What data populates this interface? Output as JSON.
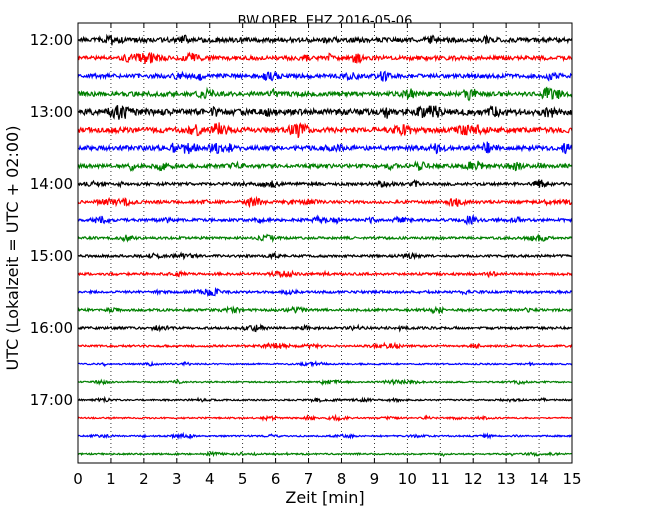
{
  "chart_data": {
    "type": "line",
    "title": "BW.OBER..EHZ 2016-05-06",
    "xlabel": "Zeit  [min]",
    "ylabel": "UTC (Lokalzeit = UTC + 02:00)",
    "xlim": [
      0,
      15
    ],
    "x_ticks": [
      "0",
      "1",
      "2",
      "3",
      "4",
      "5",
      "6",
      "7",
      "8",
      "9",
      "10",
      "11",
      "12",
      "13",
      "14",
      "15"
    ],
    "y_tick_labels": [
      "12:00",
      "13:00",
      "14:00",
      "15:00",
      "16:00",
      "17:00"
    ],
    "grid": "vertical dotted",
    "series": [
      {
        "start": "12:00",
        "color": "#000000",
        "amplitude": 0.55
      },
      {
        "start": "12:15",
        "color": "#ff0000",
        "amplitude": 0.5
      },
      {
        "start": "12:30",
        "color": "#0000ff",
        "amplitude": 0.5
      },
      {
        "start": "12:45",
        "color": "#008000",
        "amplitude": 0.55
      },
      {
        "start": "13:00",
        "color": "#000000",
        "amplitude": 0.75
      },
      {
        "start": "13:15",
        "color": "#ff0000",
        "amplitude": 0.65
      },
      {
        "start": "13:30",
        "color": "#0000ff",
        "amplitude": 0.55
      },
      {
        "start": "13:45",
        "color": "#008000",
        "amplitude": 0.45
      },
      {
        "start": "14:00",
        "color": "#000000",
        "amplitude": 0.35
      },
      {
        "start": "14:15",
        "color": "#ff0000",
        "amplitude": 0.35
      },
      {
        "start": "14:30",
        "color": "#0000ff",
        "amplitude": 0.35
      },
      {
        "start": "14:45",
        "color": "#008000",
        "amplitude": 0.3
      },
      {
        "start": "15:00",
        "color": "#000000",
        "amplitude": 0.3
      },
      {
        "start": "15:15",
        "color": "#ff0000",
        "amplitude": 0.3
      },
      {
        "start": "15:30",
        "color": "#0000ff",
        "amplitude": 0.3
      },
      {
        "start": "15:45",
        "color": "#008000",
        "amplitude": 0.3
      },
      {
        "start": "16:00",
        "color": "#000000",
        "amplitude": 0.3
      },
      {
        "start": "16:15",
        "color": "#ff0000",
        "amplitude": 0.25
      },
      {
        "start": "16:30",
        "color": "#0000ff",
        "amplitude": 0.18
      },
      {
        "start": "16:45",
        "color": "#008000",
        "amplitude": 0.18
      },
      {
        "start": "17:00",
        "color": "#000000",
        "amplitude": 0.18
      },
      {
        "start": "17:15",
        "color": "#ff0000",
        "amplitude": 0.18
      },
      {
        "start": "17:30",
        "color": "#0000ff",
        "amplitude": 0.18
      },
      {
        "start": "17:45",
        "color": "#008000",
        "amplitude": 0.18
      }
    ]
  }
}
